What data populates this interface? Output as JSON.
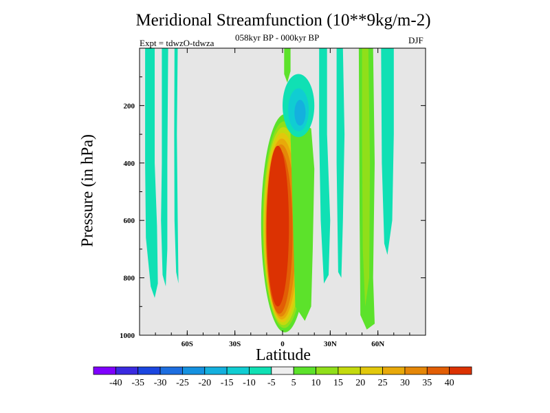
{
  "title": "Meridional Streamfunction (10**9kg/m-2)",
  "subtitle": "058kyr BP - 000kyr BP",
  "experiment": "Expt = tdwzO-tdwza",
  "season": "DJF",
  "colors": {
    "background": "#e6e6e6",
    "levels": [
      "#7f00ff",
      "#3a2ae0",
      "#1b46e0",
      "#1d6ee0",
      "#1591e0",
      "#14b0de",
      "#10cdd2",
      "#10e0b4",
      "#eeeeee",
      "#5ce22b",
      "#90df1a",
      "#c4da0e",
      "#e2c80c",
      "#e8a90a",
      "#e58708",
      "#e25e05",
      "#dc3202"
    ]
  },
  "chart_data": {
    "type": "heatmap",
    "xlabel": "Latitude",
    "ylabel": "Pressure (in hPa)",
    "xlim": [
      -90,
      90
    ],
    "ylim": [
      1000,
      0
    ],
    "x_ticks": [
      {
        "value": -60,
        "label": "60S"
      },
      {
        "value": -30,
        "label": "30S"
      },
      {
        "value": 0,
        "label": "0"
      },
      {
        "value": 30,
        "label": "30N"
      },
      {
        "value": 60,
        "label": "60N"
      }
    ],
    "y_ticks": [
      200,
      400,
      600,
      800,
      1000
    ],
    "colorbar": {
      "boundaries": [
        -40,
        -35,
        -30,
        -25,
        -20,
        -15,
        -10,
        -5,
        5,
        10,
        15,
        20,
        25,
        30,
        35,
        40
      ],
      "labels": [
        "-40",
        "-35",
        "-30",
        "-25",
        "-20",
        "-15",
        "-10",
        "-5",
        "5",
        "10",
        "15",
        "20",
        "25",
        "30",
        "35",
        "40"
      ]
    },
    "features": [
      {
        "name": "positive-cell",
        "sign": "positive",
        "max_level": 40,
        "lat_range": [
          -10,
          12
        ],
        "p_range": [
          220,
          970
        ]
      },
      {
        "name": "upper-negative-cell",
        "sign": "negative",
        "min_level": -20,
        "lat_range": [
          0,
          20
        ],
        "p_range": [
          90,
          300
        ]
      },
      {
        "name": "nh-positive-band",
        "sign": "positive",
        "max_level": 15,
        "lat_range": [
          48,
          58
        ],
        "p_range": [
          0,
          980
        ]
      },
      {
        "name": "sh-negative-band",
        "sign": "negative",
        "min_level": -10,
        "lat_range": [
          -87,
          -70
        ],
        "p_range": [
          0,
          860
        ]
      }
    ]
  }
}
